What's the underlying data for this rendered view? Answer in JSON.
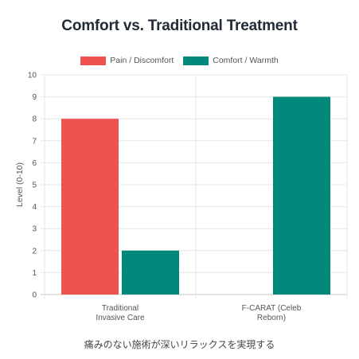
{
  "chart_data": {
    "type": "bar",
    "title": "Comfort vs. Traditional Treatment",
    "ylabel": "Level (0-10)",
    "xlabel": "",
    "ylim": [
      0,
      10
    ],
    "yticks": [
      0,
      1,
      2,
      3,
      4,
      5,
      6,
      7,
      8,
      9,
      10
    ],
    "grid": true,
    "legend_position": "top",
    "categories": [
      [
        "Traditional",
        "Invasive Care"
      ],
      [
        "F-CARAT (Celeb",
        "Reborn)"
      ]
    ],
    "series": [
      {
        "name": "Pain / Discomfort",
        "color": "#ef5350",
        "values": [
          8,
          0
        ]
      },
      {
        "name": "Comfort / Warmth",
        "color": "#00897b",
        "values": [
          2,
          9
        ]
      }
    ]
  },
  "caption": "痛みのない施術が深いリラックスを実現する"
}
